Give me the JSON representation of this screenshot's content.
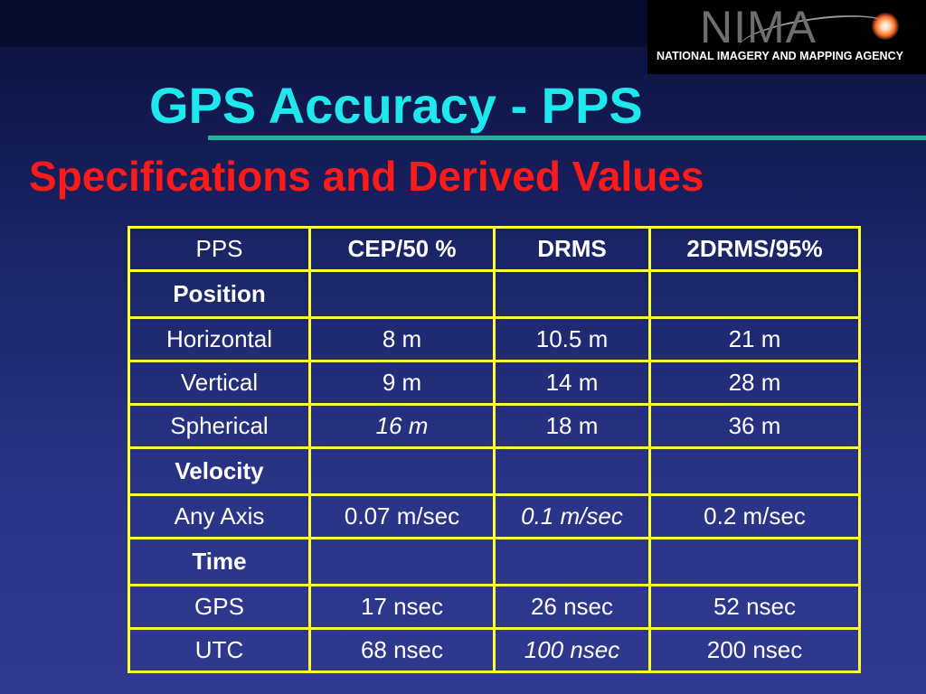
{
  "logo": {
    "word": "NIMA",
    "subtitle": "NATIONAL IMAGERY AND MAPPING AGENCY"
  },
  "title": "GPS Accuracy - PPS",
  "subtitle": "Specifications and Derived Values",
  "colors": {
    "title": "#1ee8ee",
    "subtitle": "#ff1a1a",
    "grid": "#ffff33",
    "rule": "#1fb39a"
  },
  "table": {
    "headers": [
      "PPS",
      "CEP/50 %",
      "DRMS",
      "2DRMS/95%"
    ],
    "sections": [
      {
        "label": "Position",
        "rows": [
          {
            "label": "Horizontal",
            "cep": "8 m",
            "drms": "10.5 m",
            "drms2": "21 m"
          },
          {
            "label": "Vertical",
            "cep": "9 m",
            "drms": "14 m",
            "drms2": "28 m"
          },
          {
            "label": "Spherical",
            "cep": "16 m",
            "drms": "18 m",
            "drms2": "36 m"
          }
        ]
      },
      {
        "label": "Velocity",
        "rows": [
          {
            "label": "Any Axis",
            "cep": "0.07 m/sec",
            "drms": "0.1 m/sec",
            "drms2": "0.2 m/sec"
          }
        ]
      },
      {
        "label": "Time",
        "rows": [
          {
            "label": "GPS",
            "cep": "17 nsec",
            "drms": "26 nsec",
            "drms2": "52 nsec"
          },
          {
            "label": "UTC",
            "cep": "68 nsec",
            "drms": "100 nsec",
            "drms2": "200 nsec"
          }
        ]
      }
    ]
  }
}
